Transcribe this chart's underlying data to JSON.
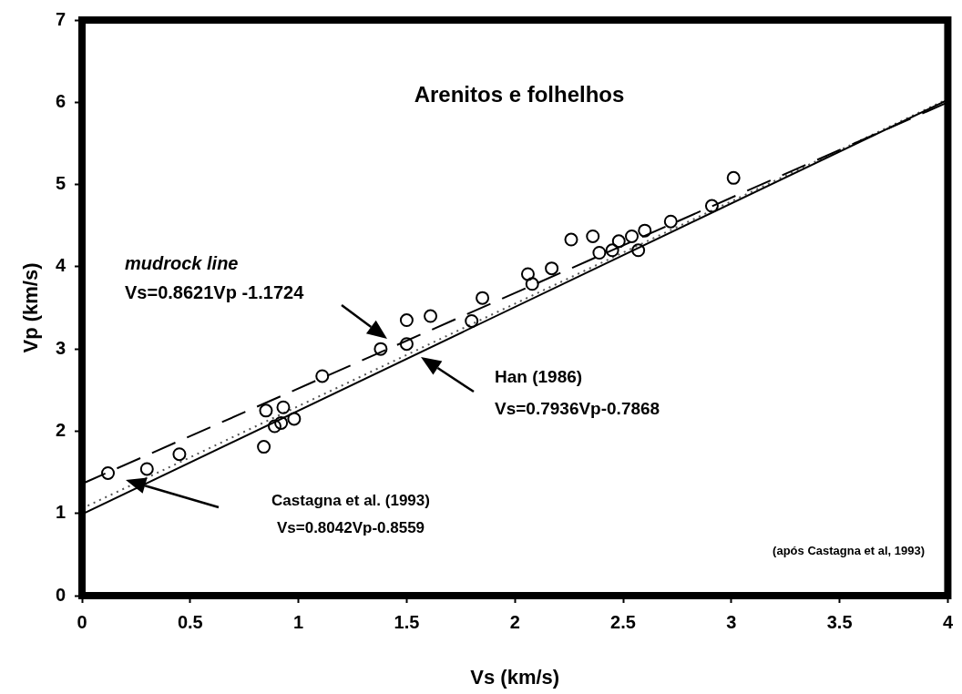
{
  "chart_data": {
    "type": "scatter",
    "title": "Arenitos e folhelhos",
    "xlabel": "Vs (km/s)",
    "ylabel": "Vp (km/s)",
    "annotations": [
      "mudrock line",
      "Vs=0.8621Vp -1.1724",
      "Han (1986)",
      "Vs=0.7936Vp-0.7868",
      "Castagna et al. (1993)",
      "Vs=0.8042Vp-0.8559",
      "(após Castagna et al, 1993)"
    ],
    "xlim": [
      0,
      4
    ],
    "ylim": [
      0,
      7
    ],
    "xticks": [
      0,
      0.5,
      1,
      1.5,
      2,
      2.5,
      3,
      3.5,
      4
    ],
    "yticks": [
      0,
      1,
      2,
      3,
      4,
      5,
      6,
      7
    ],
    "grid": false,
    "legend": false,
    "marker": "circle",
    "series": [
      {
        "color": "#000000",
        "x": [
          0.12,
          0.3,
          0.45,
          0.84,
          0.85,
          0.89,
          0.92,
          0.93,
          0.98,
          1.11,
          1.38,
          1.5,
          1.5,
          1.61,
          1.8,
          1.85,
          2.06,
          2.08,
          2.17,
          2.26,
          2.36,
          2.39,
          2.45,
          2.48,
          2.54,
          2.57,
          2.6,
          2.72,
          2.91,
          3.01
        ],
        "values": [
          1.49,
          1.54,
          1.72,
          1.81,
          2.25,
          2.06,
          2.1,
          2.29,
          2.15,
          2.67,
          3.0,
          3.06,
          3.35,
          3.4,
          3.34,
          3.62,
          3.91,
          3.79,
          3.98,
          4.33,
          4.37,
          4.17,
          4.2,
          4.31,
          4.37,
          4.2,
          4.44,
          4.55,
          4.74,
          5.08
        ]
      },
      {
        "type": "line",
        "color": "#000000",
        "marker": "none",
        "line_style": "dashed",
        "x": [
          0,
          4
        ],
        "values": [
          1.36,
          6.0
        ]
      },
      {
        "type": "line",
        "color": "#000000",
        "marker": "none",
        "line_style": "solid",
        "x": [
          0,
          4
        ],
        "values": [
          0.99,
          6.03
        ]
      },
      {
        "type": "line",
        "color": "#555555",
        "marker": "none",
        "line_style": "dotted",
        "x": [
          0,
          4
        ],
        "values": [
          1.06,
          6.04
        ]
      }
    ]
  }
}
